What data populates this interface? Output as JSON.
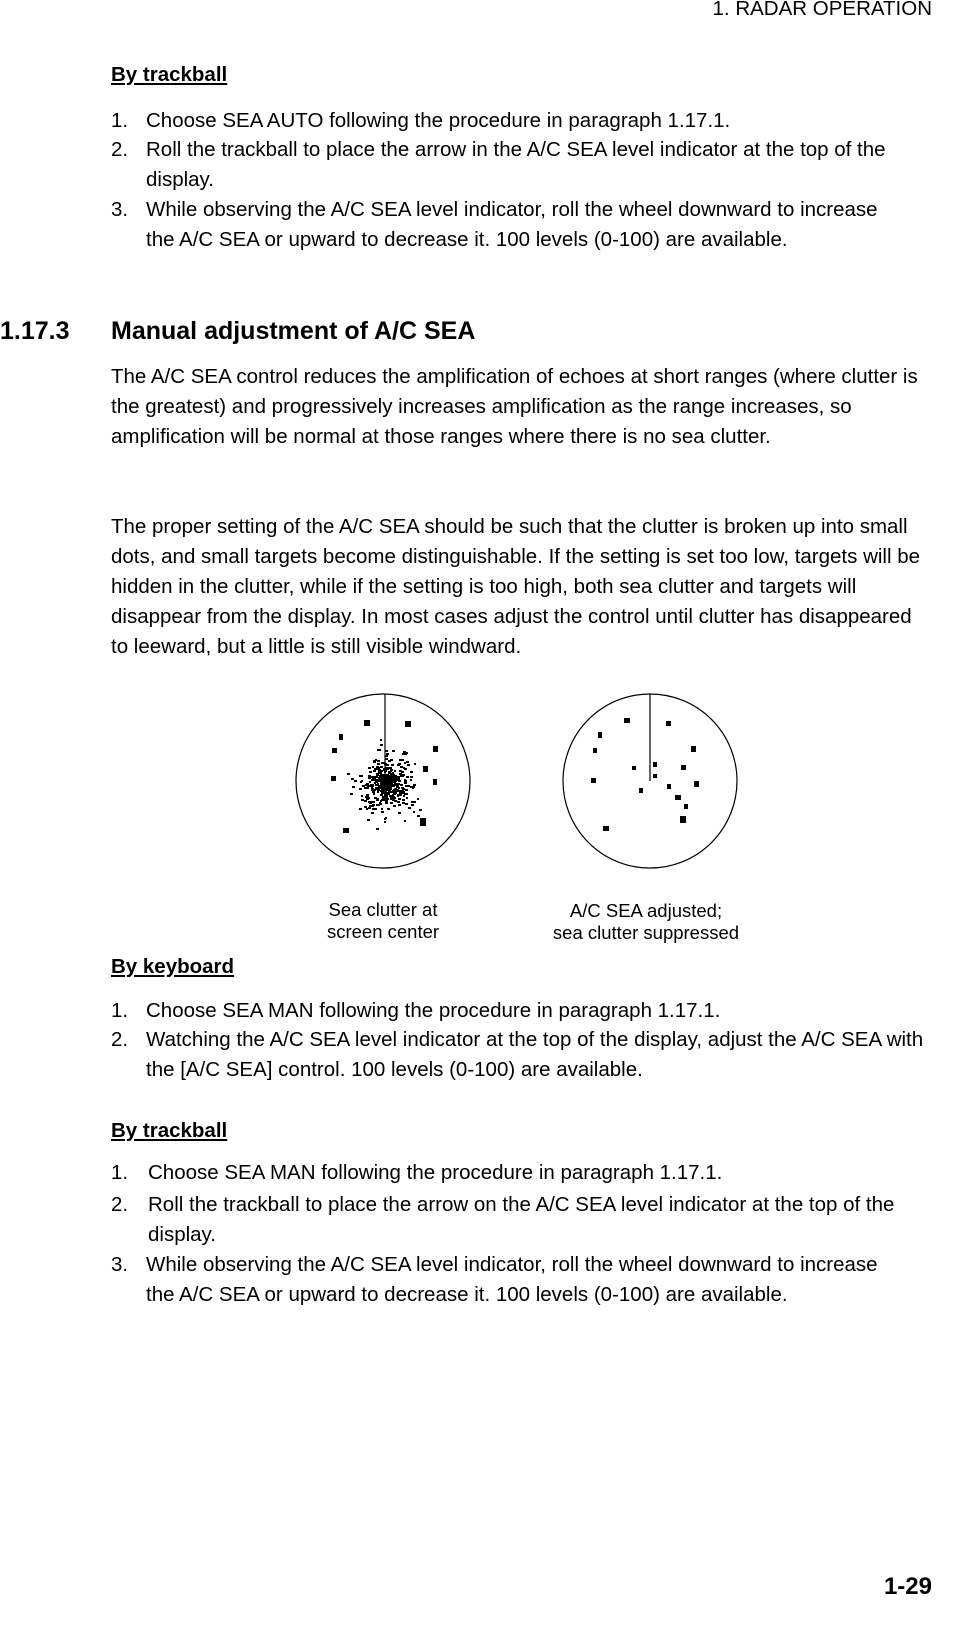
{
  "header": {
    "title": "1. RADAR OPERATION"
  },
  "trackball_auto": {
    "heading": "By trackball",
    "items": [
      {
        "number": "1.",
        "text": "Choose SEA AUTO following the procedure in paragraph 1.17.1."
      },
      {
        "number": "2.",
        "text": "Roll the trackball to place the arrow in the A/C SEA level indicator at the top of the display."
      },
      {
        "number": "3.",
        "text": "While observing the A/C SEA level indicator, roll the wheel downward to increase the A/C SEA or upward to decrease it. 100 levels (0-100) are available."
      }
    ]
  },
  "section": {
    "number": "1.17.3",
    "title": "Manual adjustment of A/C SEA",
    "paragraphs": [
      "The A/C SEA control reduces the amplification of echoes at short ranges (where clutter is the greatest) and progressively increases amplification as the range increases, so amplification will be normal at those ranges where there is no sea clutter.",
      "The proper setting of the A/C SEA should be such that the clutter is broken up into small dots, and small targets become distinguishable. If the setting is set too low, targets will be hidden in the clutter, while if the setting is too high, both sea clutter and targets will disappear from the display. In most cases adjust the control until clutter has disappeared to leeward, but a little is still visible windward."
    ]
  },
  "figure": {
    "captions": [
      [
        "Sea clutter at",
        "screen center"
      ],
      [
        "A/C SEA adjusted;",
        "sea clutter suppressed"
      ]
    ]
  },
  "keyboard": {
    "heading": "By keyboard",
    "items": [
      {
        "number": "1.",
        "text": "Choose SEA MAN following the procedure in paragraph 1.17.1."
      },
      {
        "number": "2.",
        "text": "Watching the A/C SEA level indicator at the top of the display, adjust the A/C SEA with the [A/C SEA] control. 100 levels (0-100) are available."
      }
    ]
  },
  "trackball_manual": {
    "heading": "By trackball",
    "items": [
      {
        "number": "1.",
        "text": "Choose SEA MAN following the procedure in paragraph 1.17.1."
      },
      {
        "number": "2.",
        "text": "Roll the trackball to place the arrow on the A/C SEA level indicator at the top of the display."
      },
      {
        "number": "3.",
        "text": "While observing the A/C SEA level indicator, roll the wheel downward to increase the A/C SEA or upward to decrease it. 100 levels (0-100) are available."
      }
    ]
  },
  "footer": {
    "page": "1-29"
  }
}
